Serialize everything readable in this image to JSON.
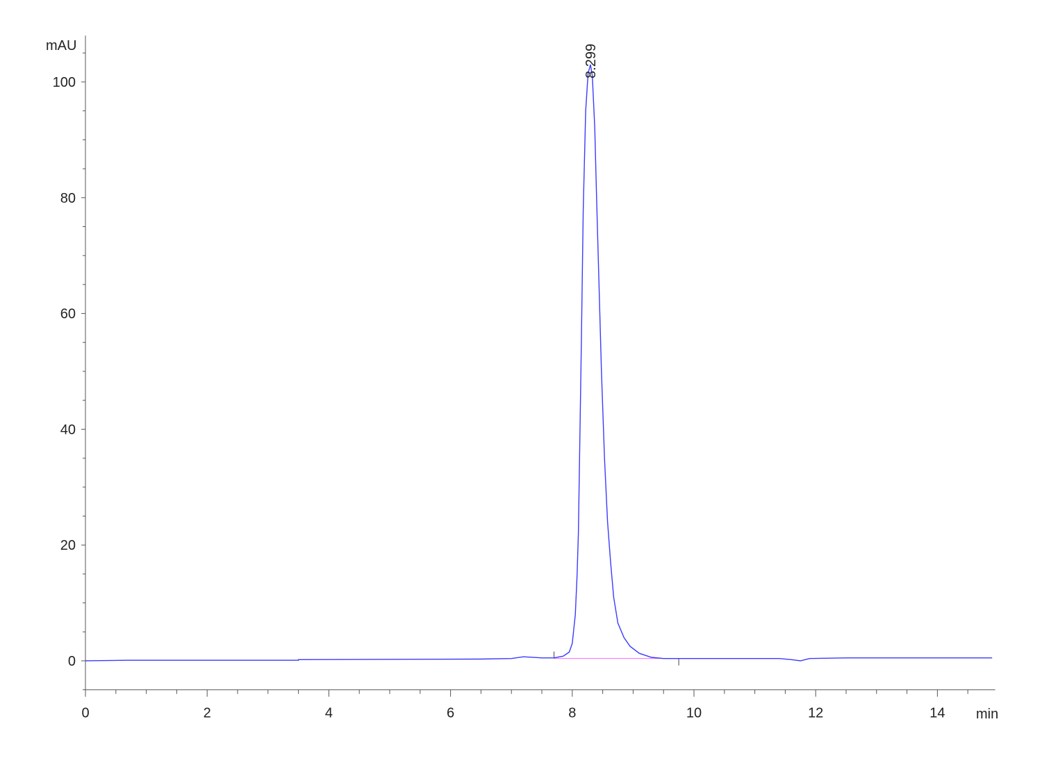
{
  "chart_data": {
    "type": "line",
    "title": "",
    "xlabel": "min",
    "ylabel": "mAU",
    "xlim": [
      0,
      14.95
    ],
    "ylim": [
      -5,
      108
    ],
    "x_ticks": [
      0,
      2,
      4,
      6,
      8,
      10,
      12,
      14
    ],
    "y_ticks": [
      0,
      20,
      40,
      60,
      80,
      100
    ],
    "grid": false,
    "line_color": "#3a3aff",
    "baseline_color": "#ff66ff",
    "peak_label": "8.299",
    "peak": {
      "x": 8.299,
      "y": 103
    },
    "integration_baseline": {
      "start": 7.7,
      "end": 9.75,
      "y": 0.4
    },
    "series": [
      {
        "x": [
          0,
          0.7,
          3.5,
          3.5,
          6.5,
          7.0,
          7.2,
          7.5,
          7.7,
          7.85,
          7.95,
          8.0,
          8.05,
          8.08,
          8.1,
          8.12,
          8.15,
          8.18,
          8.22,
          8.26,
          8.299,
          8.33,
          8.37,
          8.4,
          8.44,
          8.48,
          8.53,
          8.58,
          8.63,
          8.68,
          8.75,
          8.85,
          8.95,
          9.1,
          9.3,
          9.5,
          10,
          11.4,
          11.6,
          11.75,
          11.9,
          12.5,
          14.9
        ],
        "y": [
          0,
          0.1,
          0.1,
          0.2,
          0.3,
          0.4,
          0.7,
          0.5,
          0.5,
          0.8,
          1.5,
          3,
          8,
          15,
          22,
          35,
          55,
          78,
          95,
          101.5,
          103,
          101,
          92,
          80,
          65,
          50,
          35,
          24,
          17,
          11,
          6.5,
          4,
          2.5,
          1.3,
          0.6,
          0.4,
          0.4,
          0.4,
          0.2,
          0.0,
          0.4,
          0.5,
          0.5
        ]
      }
    ]
  }
}
